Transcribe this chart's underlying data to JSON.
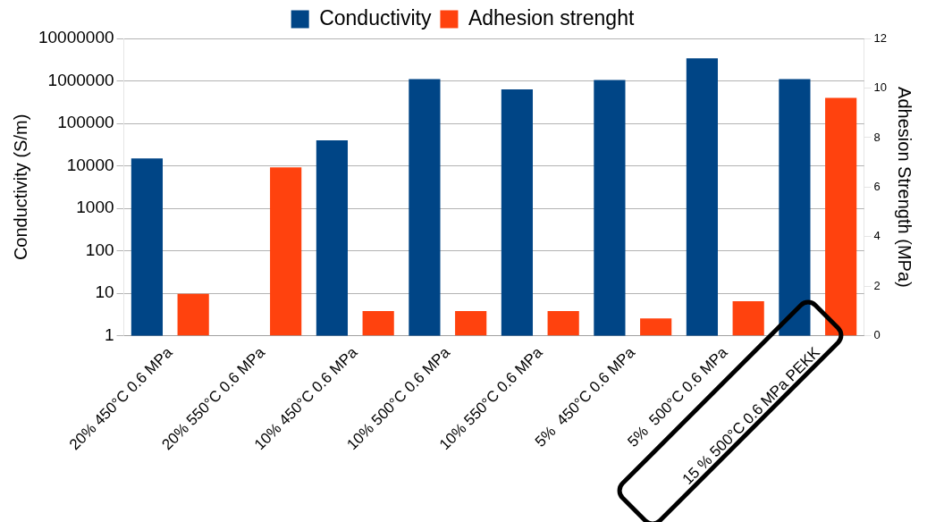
{
  "chart_data": {
    "type": "bar",
    "categories": [
      "20% 450°C 0.6 MPa",
      "20% 550°C 0.6 MPa",
      "10% 450°C 0.6 MPa",
      "10% 500°C 0.6 MPa",
      "10% 550°C 0.6 MPa",
      "5%  450°C 0.6 MPa",
      "5%  500°C 0.6 MPa",
      "15 % 500°C 0.6 MPa PEKK"
    ],
    "series": [
      {
        "name": "Conductivity",
        "color": "#004586",
        "values": [
          15000,
          null,
          40000,
          1100000,
          630000,
          1050000,
          3400000,
          1100000
        ]
      },
      {
        "name": "Adhesion strenght",
        "color": "#ff420e",
        "axis": "y2",
        "values": [
          1.7,
          6.8,
          1.0,
          1.0,
          1.0,
          0.7,
          1.4,
          9.6
        ]
      }
    ],
    "ylabel": "Conductivity (S/m)",
    "y2label": "Adhesion Strength (MPa)",
    "log": "y",
    "ylim": [
      1,
      10000000
    ],
    "yticks": [
      1,
      10,
      100,
      1000,
      10000,
      100000,
      1000000,
      10000000
    ],
    "y2lim": [
      0,
      12
    ],
    "y2ticks": [
      0,
      2,
      4,
      6,
      8,
      10,
      12
    ],
    "grid": "y",
    "legend": "top"
  }
}
